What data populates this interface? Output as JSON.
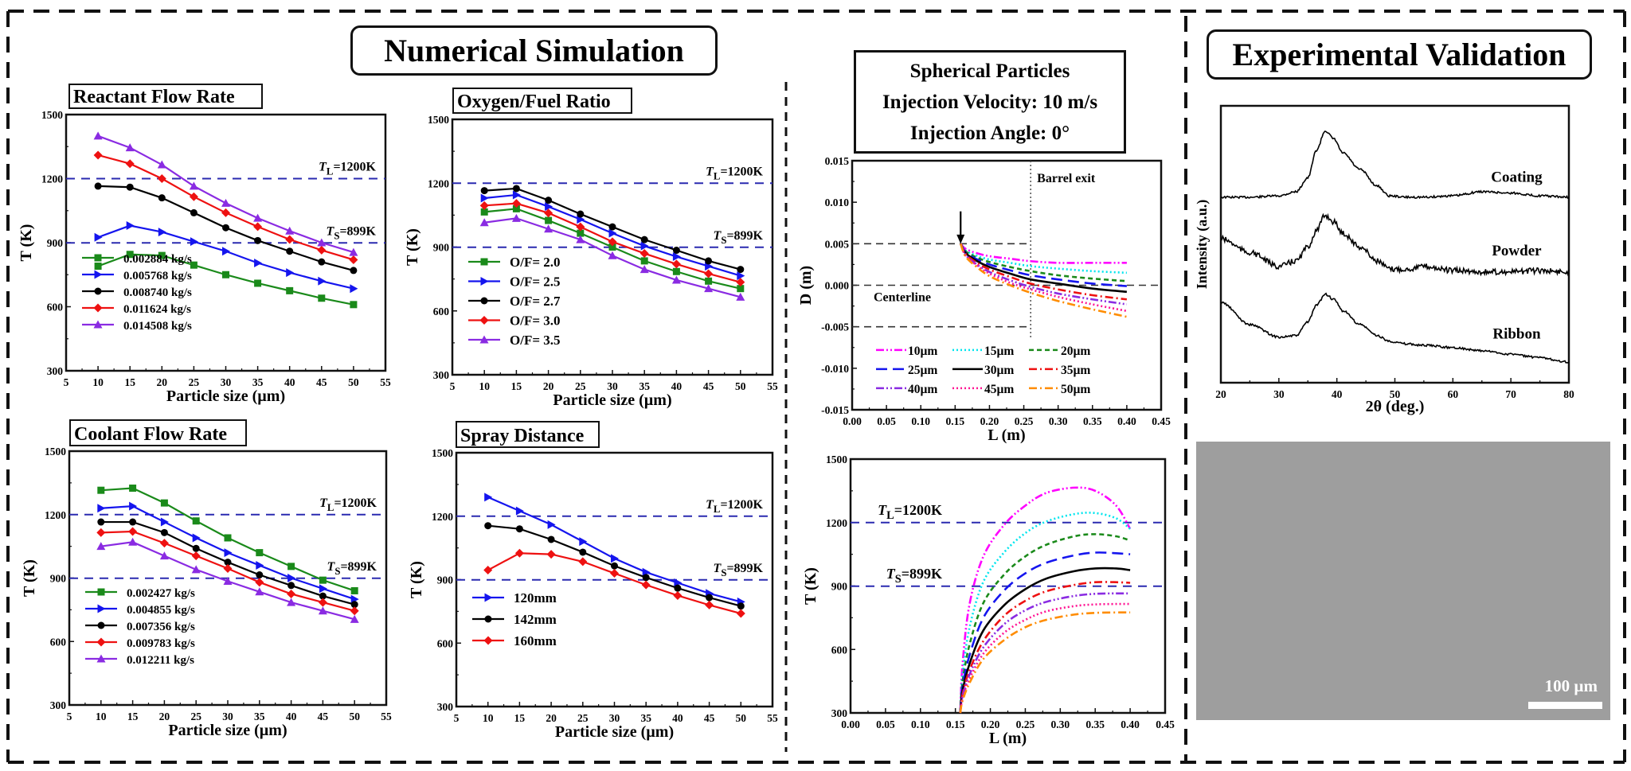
{
  "sections": {
    "simulation_title": "Numerical Simulation",
    "validation_title": "Experimental Validation",
    "info_box": [
      "Spherical Particles",
      "Injection Velocity: 10 m/s",
      "Injection Angle: 0°"
    ]
  },
  "thresholds": {
    "liquidus": {
      "value": 1200,
      "label_sym": "T",
      "label_sub": "L",
      "label_rest": "=1200K"
    },
    "solidus": {
      "value": 899,
      "label_sym": "T",
      "label_sub": "S",
      "label_rest": "=899K"
    },
    "color": "#2a2ab0"
  },
  "sem": {
    "scale_label": "100 µm",
    "background": "#9e9e9e"
  },
  "chart_data": [
    {
      "id": "reactant",
      "type": "line",
      "title": "Reactant Flow Rate",
      "xlabel": "Particle size (µm)",
      "ylabel": "T (K)",
      "xlim": [
        5,
        55
      ],
      "ylim": [
        300,
        1500
      ],
      "xticks": [
        5,
        10,
        15,
        20,
        25,
        30,
        35,
        40,
        45,
        50,
        55
      ],
      "yticks": [
        300,
        600,
        900,
        1200,
        1500
      ],
      "legend_position": "bottom-left",
      "x": [
        10,
        15,
        20,
        25,
        30,
        35,
        40,
        45,
        50
      ],
      "series": [
        {
          "name": "0.002884 kg/s",
          "color": "#1a8a1a",
          "marker": "square",
          "values": [
            790,
            845,
            840,
            795,
            750,
            710,
            675,
            640,
            610
          ]
        },
        {
          "name": "0.005768 kg/s",
          "color": "#1515ee",
          "marker": "tri-right",
          "values": [
            925,
            980,
            950,
            905,
            860,
            805,
            760,
            720,
            685
          ]
        },
        {
          "name": "0.008740 kg/s",
          "color": "#000000",
          "marker": "circle",
          "values": [
            1165,
            1160,
            1110,
            1040,
            970,
            910,
            860,
            810,
            770
          ]
        },
        {
          "name": "0.011624 kg/s",
          "color": "#ee1111",
          "marker": "diamond",
          "values": [
            1310,
            1270,
            1200,
            1115,
            1040,
            975,
            915,
            865,
            820
          ]
        },
        {
          "name": "0.014508 kg/s",
          "color": "#8a2be2",
          "marker": "tri-up",
          "values": [
            1400,
            1345,
            1265,
            1165,
            1085,
            1015,
            955,
            900,
            855
          ]
        }
      ]
    },
    {
      "id": "oxyfuel",
      "type": "line",
      "title": "Oxygen/Fuel Ratio",
      "xlabel": "Particle size (µm)",
      "ylabel": "T (K)",
      "xlim": [
        5,
        55
      ],
      "ylim": [
        300,
        1500
      ],
      "xticks": [
        5,
        10,
        15,
        20,
        25,
        30,
        35,
        40,
        45,
        50,
        55
      ],
      "yticks": [
        300,
        600,
        900,
        1200,
        1500
      ],
      "legend_position": "bottom-left",
      "x": [
        10,
        15,
        20,
        25,
        30,
        35,
        40,
        45,
        50
      ],
      "series": [
        {
          "name": "O/F= 2.0",
          "color": "#1a8a1a",
          "marker": "square",
          "values": [
            1065,
            1080,
            1025,
            965,
            900,
            835,
            785,
            740,
            705
          ]
        },
        {
          "name": "O/F= 2.5",
          "color": "#1515ee",
          "marker": "tri-right",
          "values": [
            1130,
            1145,
            1090,
            1030,
            965,
            905,
            855,
            810,
            765
          ]
        },
        {
          "name": "O/F= 2.7",
          "color": "#000000",
          "marker": "circle",
          "values": [
            1165,
            1175,
            1120,
            1055,
            995,
            935,
            885,
            835,
            795
          ]
        },
        {
          "name": "O/F= 3.0",
          "color": "#ee1111",
          "marker": "diamond",
          "values": [
            1095,
            1105,
            1060,
            995,
            925,
            870,
            820,
            775,
            735
          ]
        },
        {
          "name": "O/F= 3.5",
          "color": "#8a2be2",
          "marker": "tri-up",
          "values": [
            1015,
            1035,
            985,
            935,
            860,
            795,
            745,
            705,
            665
          ]
        }
      ]
    },
    {
      "id": "coolant",
      "type": "line",
      "title": "Coolant Flow Rate",
      "xlabel": "Particle size (µm)",
      "ylabel": "T (K)",
      "xlim": [
        5,
        55
      ],
      "ylim": [
        300,
        1500
      ],
      "xticks": [
        5,
        10,
        15,
        20,
        25,
        30,
        35,
        40,
        45,
        50,
        55
      ],
      "yticks": [
        300,
        600,
        900,
        1200,
        1500
      ],
      "legend_position": "bottom-left",
      "x": [
        10,
        15,
        20,
        25,
        30,
        35,
        40,
        45,
        50
      ],
      "series": [
        {
          "name": "0.002427 kg/s",
          "color": "#1a8a1a",
          "marker": "square",
          "values": [
            1315,
            1325,
            1255,
            1170,
            1090,
            1020,
            955,
            890,
            840
          ]
        },
        {
          "name": "0.004855 kg/s",
          "color": "#1515ee",
          "marker": "tri-right",
          "values": [
            1230,
            1240,
            1165,
            1090,
            1020,
            960,
            900,
            850,
            800
          ]
        },
        {
          "name": "0.007356 kg/s",
          "color": "#000000",
          "marker": "circle",
          "values": [
            1165,
            1165,
            1115,
            1040,
            975,
            915,
            865,
            815,
            775
          ]
        },
        {
          "name": "0.009783 kg/s",
          "color": "#ee1111",
          "marker": "diamond",
          "values": [
            1115,
            1120,
            1065,
            1005,
            945,
            880,
            825,
            785,
            745
          ]
        },
        {
          "name": "0.012211 kg/s",
          "color": "#8a2be2",
          "marker": "tri-up",
          "values": [
            1050,
            1070,
            1005,
            940,
            885,
            835,
            785,
            745,
            705
          ]
        }
      ]
    },
    {
      "id": "spray",
      "type": "line",
      "title": "Spray Distance",
      "xlabel": "Particle size (µm)",
      "ylabel": "T (K)",
      "xlim": [
        5,
        55
      ],
      "ylim": [
        300,
        1500
      ],
      "xticks": [
        5,
        10,
        15,
        20,
        25,
        30,
        35,
        40,
        45,
        50,
        55
      ],
      "yticks": [
        300,
        600,
        900,
        1200,
        1500
      ],
      "legend_position": "bottom-left",
      "x": [
        10,
        15,
        20,
        25,
        30,
        35,
        40,
        45,
        50
      ],
      "series": [
        {
          "name": "120mm",
          "color": "#1515ee",
          "marker": "tri-right",
          "values": [
            1290,
            1225,
            1160,
            1080,
            1000,
            935,
            885,
            835,
            795
          ]
        },
        {
          "name": "142mm",
          "color": "#000000",
          "marker": "circle",
          "values": [
            1155,
            1140,
            1090,
            1030,
            965,
            910,
            860,
            815,
            775
          ]
        },
        {
          "name": "160mm",
          "color": "#ee1111",
          "marker": "diamond",
          "values": [
            945,
            1025,
            1020,
            985,
            930,
            875,
            825,
            780,
            740
          ]
        }
      ]
    },
    {
      "id": "trajectory",
      "type": "line",
      "title": "",
      "xlabel": "L (m)",
      "ylabel": "D (m)",
      "xlim": [
        0,
        0.45
      ],
      "ylim": [
        -0.015,
        0.015
      ],
      "xticks": [
        "0.00",
        "0.05",
        "0.10",
        "0.15",
        "0.20",
        "0.25",
        "0.30",
        "0.35",
        "0.40",
        "0.45"
      ],
      "yticks": [
        "-0.015",
        "-0.010",
        "-0.005",
        "0.000",
        "0.005",
        "0.010",
        "0.015"
      ],
      "annotations": {
        "barrel_exit": "Barrel exit",
        "barrel_exit_x": 0.26,
        "centerline": "Centerline",
        "wall_levels": [
          0.005,
          0.0,
          -0.005
        ],
        "injection_x": 0.158
      },
      "legend_position": "bottom",
      "x": [
        0.158,
        0.165,
        0.18,
        0.2,
        0.23,
        0.26,
        0.3,
        0.35,
        0.4
      ],
      "series": [
        {
          "name": "10µm",
          "color": "#ff00ff",
          "dash": "dashdotdot",
          "values": [
            0.005,
            0.0044,
            0.0039,
            0.0035,
            0.0032,
            0.0029,
            0.0027,
            0.0027,
            0.0027
          ]
        },
        {
          "name": "15µm",
          "color": "#00e5ee",
          "dash": "dot",
          "values": [
            0.005,
            0.0042,
            0.0036,
            0.0031,
            0.0027,
            0.0023,
            0.002,
            0.0017,
            0.0015
          ]
        },
        {
          "name": "20µm",
          "color": "#1a8a1a",
          "dash": "shortdash",
          "values": [
            0.005,
            0.0041,
            0.0034,
            0.0028,
            0.0022,
            0.0017,
            0.0012,
            0.0008,
            0.0005
          ]
        },
        {
          "name": "25µm",
          "color": "#1515ee",
          "dash": "longdash",
          "values": [
            0.005,
            0.004,
            0.0032,
            0.0025,
            0.0018,
            0.0012,
            0.0007,
            0.0002,
            -0.0001
          ]
        },
        {
          "name": "30µm",
          "color": "#000000",
          "dash": "solid",
          "values": [
            0.005,
            0.0039,
            0.003,
            0.0022,
            0.0014,
            0.0007,
            0.0002,
            -0.0004,
            -0.0008
          ]
        },
        {
          "name": "35µm",
          "color": "#ee1111",
          "dash": "dashdot",
          "values": [
            0.005,
            0.0038,
            0.0028,
            0.0019,
            0.001,
            0.0002,
            -0.0005,
            -0.0012,
            -0.0017
          ]
        },
        {
          "name": "40µm",
          "color": "#8a2be2",
          "dash": "dashdotdot",
          "values": [
            0.005,
            0.0037,
            0.0026,
            0.0016,
            0.0006,
            -0.0002,
            -0.001,
            -0.0017,
            -0.0023
          ]
        },
        {
          "name": "45µm",
          "color": "#ff1493",
          "dash": "dot",
          "values": [
            0.005,
            0.0036,
            0.0025,
            0.0014,
            0.0003,
            -0.0005,
            -0.0014,
            -0.0023,
            -0.0031
          ]
        },
        {
          "name": "50µm",
          "color": "#ff8c00",
          "dash": "dashdot",
          "values": [
            0.005,
            0.0035,
            0.0023,
            0.0011,
            0.0,
            -0.0009,
            -0.0019,
            -0.0029,
            -0.0038
          ]
        }
      ]
    },
    {
      "id": "temperature_L",
      "type": "line",
      "title": "",
      "xlabel": "L (m)",
      "ylabel": "T (K)",
      "xlim": [
        0,
        0.45
      ],
      "ylim": [
        300,
        1500
      ],
      "xticks": [
        "0.00",
        "0.05",
        "0.10",
        "0.15",
        "0.20",
        "0.25",
        "0.30",
        "0.35",
        "0.40",
        "0.45"
      ],
      "yticks": [
        "300",
        "600",
        "900",
        "1200",
        "1500"
      ],
      "legend_position": "none",
      "x": [
        0.157,
        0.16,
        0.17,
        0.19,
        0.22,
        0.25,
        0.28,
        0.32,
        0.35,
        0.38,
        0.4
      ],
      "series": [
        {
          "name": "10µm",
          "color": "#ff00ff",
          "dash": "dashdotdot",
          "values": [
            300,
            520,
            810,
            1040,
            1190,
            1280,
            1340,
            1365,
            1350,
            1280,
            1170
          ]
        },
        {
          "name": "15µm",
          "color": "#00e5ee",
          "dash": "dot",
          "values": [
            300,
            470,
            700,
            920,
            1060,
            1150,
            1205,
            1240,
            1245,
            1220,
            1170
          ]
        },
        {
          "name": "20µm",
          "color": "#1a8a1a",
          "dash": "shortdash",
          "values": [
            300,
            440,
            620,
            820,
            955,
            1040,
            1095,
            1135,
            1145,
            1135,
            1115
          ]
        },
        {
          "name": "25µm",
          "color": "#1515ee",
          "dash": "longdash",
          "values": [
            300,
            420,
            570,
            750,
            880,
            960,
            1010,
            1045,
            1058,
            1055,
            1050
          ]
        },
        {
          "name": "30µm",
          "color": "#000000",
          "dash": "solid",
          "values": [
            300,
            400,
            530,
            690,
            810,
            885,
            935,
            970,
            983,
            983,
            975
          ]
        },
        {
          "name": "35µm",
          "color": "#ee1111",
          "dash": "dashdot",
          "values": [
            300,
            385,
            500,
            640,
            760,
            830,
            875,
            905,
            918,
            918,
            915
          ]
        },
        {
          "name": "40µm",
          "color": "#8a2be2",
          "dash": "dashdotdot",
          "values": [
            300,
            375,
            480,
            610,
            720,
            785,
            825,
            853,
            863,
            865,
            865
          ]
        },
        {
          "name": "45µm",
          "color": "#ff1493",
          "dash": "dot",
          "values": [
            300,
            365,
            460,
            580,
            680,
            740,
            780,
            805,
            813,
            815,
            815
          ]
        },
        {
          "name": "50µm",
          "color": "#ff8c00",
          "dash": "dashdot",
          "values": [
            300,
            355,
            440,
            555,
            645,
            705,
            740,
            765,
            773,
            775,
            775
          ]
        }
      ]
    },
    {
      "id": "xrd",
      "type": "line",
      "title": "",
      "xlabel": "2θ (deg.)",
      "ylabel": "Intensity (a.u.)",
      "xlim": [
        20,
        80
      ],
      "ylim": [
        0,
        100
      ],
      "xticks": [
        20,
        30,
        40,
        50,
        60,
        70,
        80
      ],
      "yticks": [],
      "legend_position": "inline",
      "x": [
        20,
        25,
        30,
        33,
        35,
        36.5,
        38,
        39.5,
        41,
        44,
        47,
        49,
        52,
        55,
        60,
        65,
        70,
        75,
        80
      ],
      "series": [
        {
          "name": "Coating",
          "color": "#000000",
          "values": [
            67,
            67,
            67.5,
            69,
            74,
            84,
            91,
            88,
            83,
            77,
            71,
            67.5,
            67,
            67,
            67.5,
            69,
            68.5,
            67.5,
            67
          ]
        },
        {
          "name": "Powder",
          "color": "#000000",
          "values": [
            52,
            47,
            42,
            44,
            49,
            55,
            60.5,
            58,
            54,
            49,
            44,
            41,
            41,
            42,
            40.5,
            40,
            40,
            40.5,
            40
          ]
        },
        {
          "name": "Ribbon",
          "color": "#000000",
          "values": [
            29,
            21,
            16.5,
            17,
            22,
            28,
            32,
            30,
            26,
            21,
            17,
            15,
            14,
            13.5,
            12.7,
            11.5,
            10.3,
            9,
            7.5
          ]
        }
      ]
    }
  ]
}
